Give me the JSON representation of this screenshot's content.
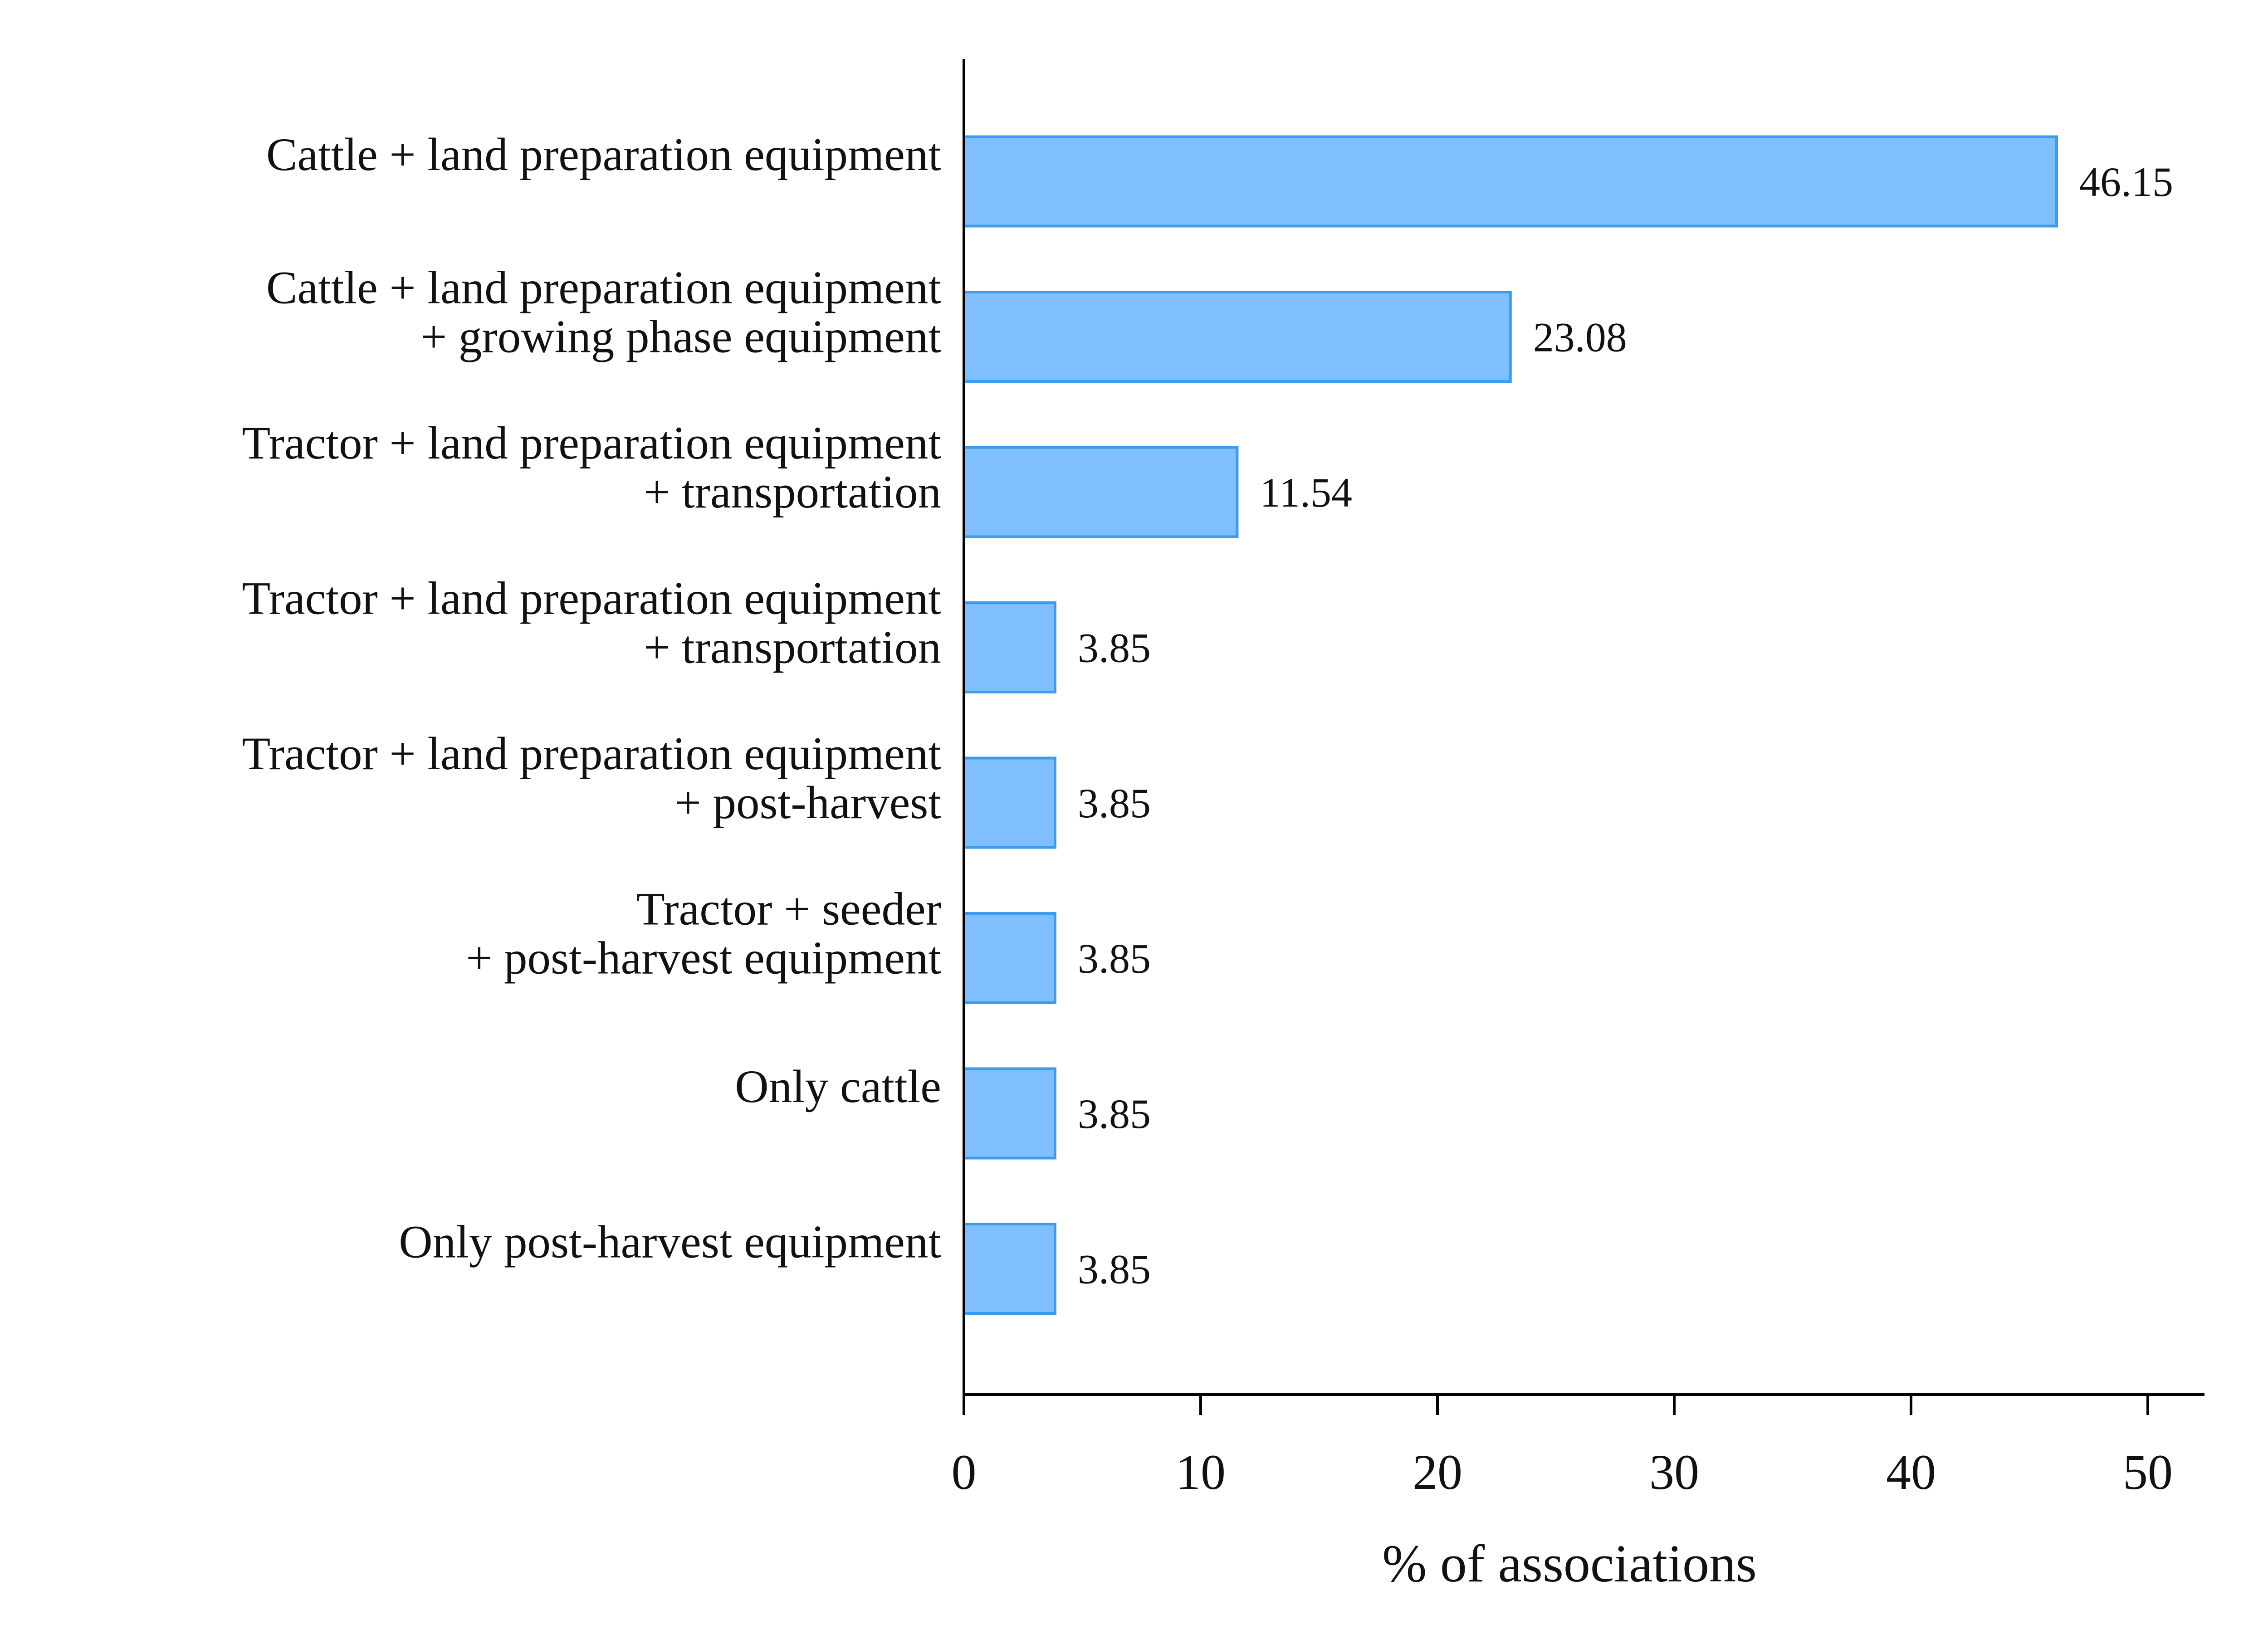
{
  "chart_data": {
    "type": "bar",
    "orientation": "horizontal",
    "categories": [
      [
        "Cattle + land preparation equipment"
      ],
      [
        "Cattle + land preparation equipment",
        "+ growing phase equipment"
      ],
      [
        "Tractor + land preparation equipment",
        "+ transportation"
      ],
      [
        "Tractor + land preparation equipment",
        "+ transportation"
      ],
      [
        "Tractor + land preparation equipment",
        "+ post-harvest"
      ],
      [
        "Tractor + seeder",
        "+ post-harvest equipment"
      ],
      [
        "Only cattle"
      ],
      [
        "Only post-harvest equipment"
      ]
    ],
    "values": [
      46.15,
      23.08,
      11.54,
      3.85,
      3.85,
      3.85,
      3.85,
      3.85
    ],
    "value_labels": [
      "46.15",
      "23.08",
      "11.54",
      "3.85",
      "3.85",
      "3.85",
      "3.85",
      "3.85"
    ],
    "xlabel": "% of associations",
    "ylabel": "",
    "title": "",
    "xlim": [
      0,
      52.5
    ],
    "xticks": [
      0,
      10,
      20,
      30,
      40,
      50
    ],
    "grid": false,
    "legend": "none",
    "colors": {
      "bar_fill": "#80BFFF",
      "bar_stroke": "#3D9BEB",
      "axis": "#000000"
    }
  }
}
